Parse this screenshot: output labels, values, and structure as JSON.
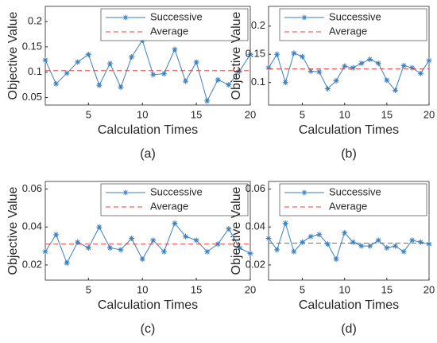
{
  "chart_data": [
    {
      "type": "line",
      "caption": "(a)",
      "xlabel": "Calculation Times",
      "ylabel": "Objective Value",
      "x": [
        1,
        2,
        3,
        4,
        5,
        6,
        7,
        8,
        9,
        10,
        11,
        12,
        13,
        14,
        15,
        16,
        17,
        18,
        19,
        20
      ],
      "xlim": [
        1,
        20
      ],
      "xticks": [
        5,
        10,
        15,
        20
      ],
      "ylim": [
        0.035,
        0.23
      ],
      "yticks": [
        0.05,
        0.1,
        0.15,
        0.2
      ],
      "legend": "upper right",
      "series": [
        {
          "name": "Successive",
          "color": "#3a7fc0",
          "values": [
            0.124,
            0.077,
            0.098,
            0.12,
            0.135,
            0.074,
            0.117,
            0.07,
            0.13,
            0.163,
            0.095,
            0.097,
            0.145,
            0.082,
            0.12,
            0.043,
            0.085,
            0.075,
            0.102,
            0.135
          ]
        },
        {
          "name": "Average",
          "color": "#e8413c",
          "value": 0.103
        }
      ]
    },
    {
      "type": "line",
      "caption": "(b)",
      "xlabel": "Calculation Times",
      "ylabel": "Objective Value",
      "x": [
        1,
        2,
        3,
        4,
        5,
        6,
        7,
        8,
        9,
        10,
        11,
        12,
        13,
        14,
        15,
        16,
        17,
        18,
        19,
        20
      ],
      "xlim": [
        1,
        20
      ],
      "xticks": [
        5,
        10,
        15,
        20
      ],
      "ylim": [
        0.06,
        0.235
      ],
      "yticks": [
        0.1,
        0.15,
        0.2
      ],
      "legend": "upper right",
      "series": [
        {
          "name": "Successive",
          "color": "#3a7fc0",
          "values": [
            0.126,
            0.15,
            0.1,
            0.152,
            0.146,
            0.12,
            0.119,
            0.089,
            0.103,
            0.129,
            0.126,
            0.134,
            0.141,
            0.134,
            0.104,
            0.086,
            0.13,
            0.126,
            0.116,
            0.139
          ]
        },
        {
          "name": "Average",
          "color": "#e8413c",
          "value": 0.124
        }
      ]
    },
    {
      "type": "line",
      "caption": "(c)",
      "xlabel": "Calculation Times",
      "ylabel": "Objective Value",
      "x": [
        1,
        2,
        3,
        4,
        5,
        6,
        7,
        8,
        9,
        10,
        11,
        12,
        13,
        14,
        15,
        16,
        17,
        18,
        19,
        20
      ],
      "xlim": [
        1,
        20
      ],
      "xticks": [
        5,
        10,
        15,
        20
      ],
      "ylim": [
        0.012,
        0.064
      ],
      "yticks": [
        0.02,
        0.04,
        0.06
      ],
      "legend": "upper right",
      "series": [
        {
          "name": "Successive",
          "color": "#3a7fc0",
          "values": [
            0.027,
            0.036,
            0.021,
            0.032,
            0.029,
            0.04,
            0.029,
            0.028,
            0.034,
            0.023,
            0.033,
            0.027,
            0.042,
            0.035,
            0.033,
            0.027,
            0.031,
            0.039,
            0.029,
            0.026
          ]
        },
        {
          "name": "Average",
          "color": "#e8413c",
          "value": 0.031
        }
      ]
    },
    {
      "type": "line",
      "caption": "(d)",
      "xlabel": "Calculation Times",
      "ylabel": "Objective Value",
      "x": [
        1,
        2,
        3,
        4,
        5,
        6,
        7,
        8,
        9,
        10,
        11,
        12,
        13,
        14,
        15,
        16,
        17,
        18,
        19,
        20
      ],
      "xlim": [
        1,
        20
      ],
      "xticks": [
        5,
        10,
        15,
        20
      ],
      "ylim": [
        0.012,
        0.064
      ],
      "yticks": [
        0.02,
        0.04,
        0.06
      ],
      "legend": "upper right",
      "series": [
        {
          "name": "Successive",
          "color": "#3a7fc0",
          "values": [
            0.034,
            0.028,
            0.042,
            0.027,
            0.032,
            0.035,
            0.036,
            0.031,
            0.023,
            0.037,
            0.032,
            0.03,
            0.03,
            0.033,
            0.029,
            0.03,
            0.027,
            0.033,
            0.032,
            0.031
          ]
        },
        {
          "name": "Average",
          "color": "#e8413c",
          "value": 0.0315
        }
      ]
    }
  ]
}
